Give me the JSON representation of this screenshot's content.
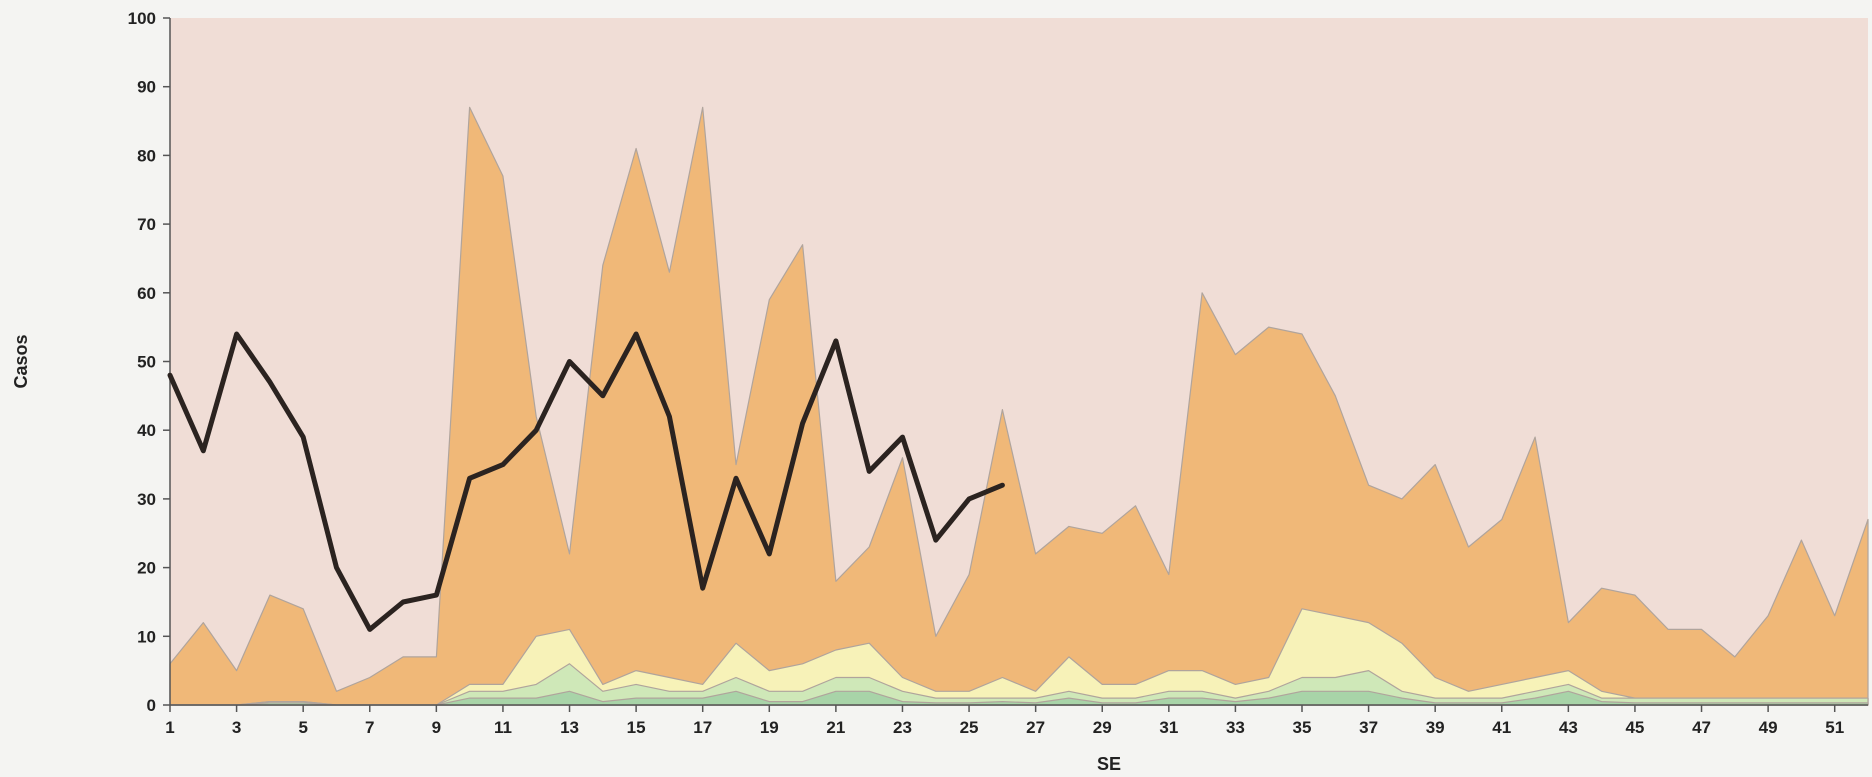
{
  "chart_data": {
    "type": "area",
    "title": "",
    "xlabel": "SE",
    "ylabel": "Casos",
    "xlim": [
      1,
      52
    ],
    "ylim": [
      0,
      100
    ],
    "yticks": [
      0,
      10,
      20,
      30,
      40,
      50,
      60,
      70,
      80,
      90,
      100
    ],
    "xticks": [
      1,
      3,
      5,
      7,
      9,
      11,
      13,
      15,
      17,
      19,
      21,
      23,
      25,
      27,
      29,
      31,
      33,
      35,
      37,
      39,
      41,
      43,
      45,
      47,
      49,
      51
    ],
    "grid": false,
    "colors": {
      "background": "#f0ddd6",
      "epidemic": "#f0b878",
      "alert": "#f7f2b8",
      "safety": "#cfe8b8",
      "success": "#a8d4a8",
      "current": "#2b2320",
      "area_edge": "#b0a49c"
    },
    "series": [
      {
        "kind": "area",
        "values": [
          6,
          12,
          5,
          16,
          14,
          2,
          4,
          7,
          7,
          87,
          77,
          42,
          22,
          64,
          81,
          63,
          87,
          35,
          59,
          67,
          18,
          23,
          36,
          10,
          19,
          43,
          22,
          26,
          25,
          29,
          19,
          60,
          51,
          55,
          54,
          45,
          32,
          30,
          35,
          23,
          27,
          39,
          12,
          17,
          16,
          11,
          11,
          7,
          13,
          24,
          13,
          27
        ]
      },
      {
        "kind": "area",
        "values": [
          0,
          0,
          0,
          0.5,
          0.5,
          0,
          0,
          0,
          0,
          3,
          3,
          10,
          11,
          3,
          5,
          4,
          3,
          9,
          5,
          6,
          8,
          9,
          4,
          2,
          2,
          4,
          2,
          7,
          3,
          3,
          5,
          5,
          3,
          4,
          14,
          13,
          12,
          9,
          4,
          2,
          3,
          4,
          5,
          2,
          1,
          1,
          1,
          1,
          1,
          1,
          1,
          1
        ]
      },
      {
        "kind": "area",
        "values": [
          0,
          0,
          0,
          0.5,
          0.5,
          0,
          0,
          0,
          0,
          2,
          2,
          3,
          6,
          2,
          3,
          2,
          2,
          4,
          2,
          2,
          4,
          4,
          2,
          1,
          1,
          1,
          1,
          2,
          1,
          1,
          2,
          2,
          1,
          2,
          4,
          4,
          5,
          2,
          1,
          1,
          1,
          2,
          3,
          1,
          1,
          1,
          1,
          1,
          1,
          1,
          1,
          1
        ]
      },
      {
        "kind": "area",
        "values": [
          0,
          0,
          0,
          0.3,
          0.3,
          0,
          0,
          0,
          0,
          1,
          1,
          1,
          2,
          0.5,
          1,
          1,
          1,
          2,
          0.5,
          0.5,
          2,
          2,
          0.5,
          0.3,
          0.3,
          0.5,
          0.3,
          1,
          0.3,
          0.3,
          1,
          1,
          0.5,
          1,
          2,
          2,
          2,
          1,
          0.3,
          0.3,
          0.3,
          1,
          2,
          0.5,
          0.3,
          0.3,
          0.3,
          0.3,
          0.3,
          0.3,
          0.3,
          0.3
        ]
      },
      {
        "kind": "line",
        "x": [
          1,
          2,
          3,
          4,
          5,
          6,
          7,
          8,
          9,
          10,
          11,
          12,
          13,
          14,
          15,
          16,
          17,
          18,
          19,
          20,
          21,
          22,
          23,
          24,
          25,
          26
        ],
        "values": [
          48,
          37,
          54,
          47,
          39,
          20,
          11,
          15,
          16,
          33,
          35,
          40,
          50,
          45,
          54,
          42,
          17,
          33,
          22,
          41,
          53,
          34,
          39,
          24,
          30,
          32
        ]
      }
    ]
  }
}
